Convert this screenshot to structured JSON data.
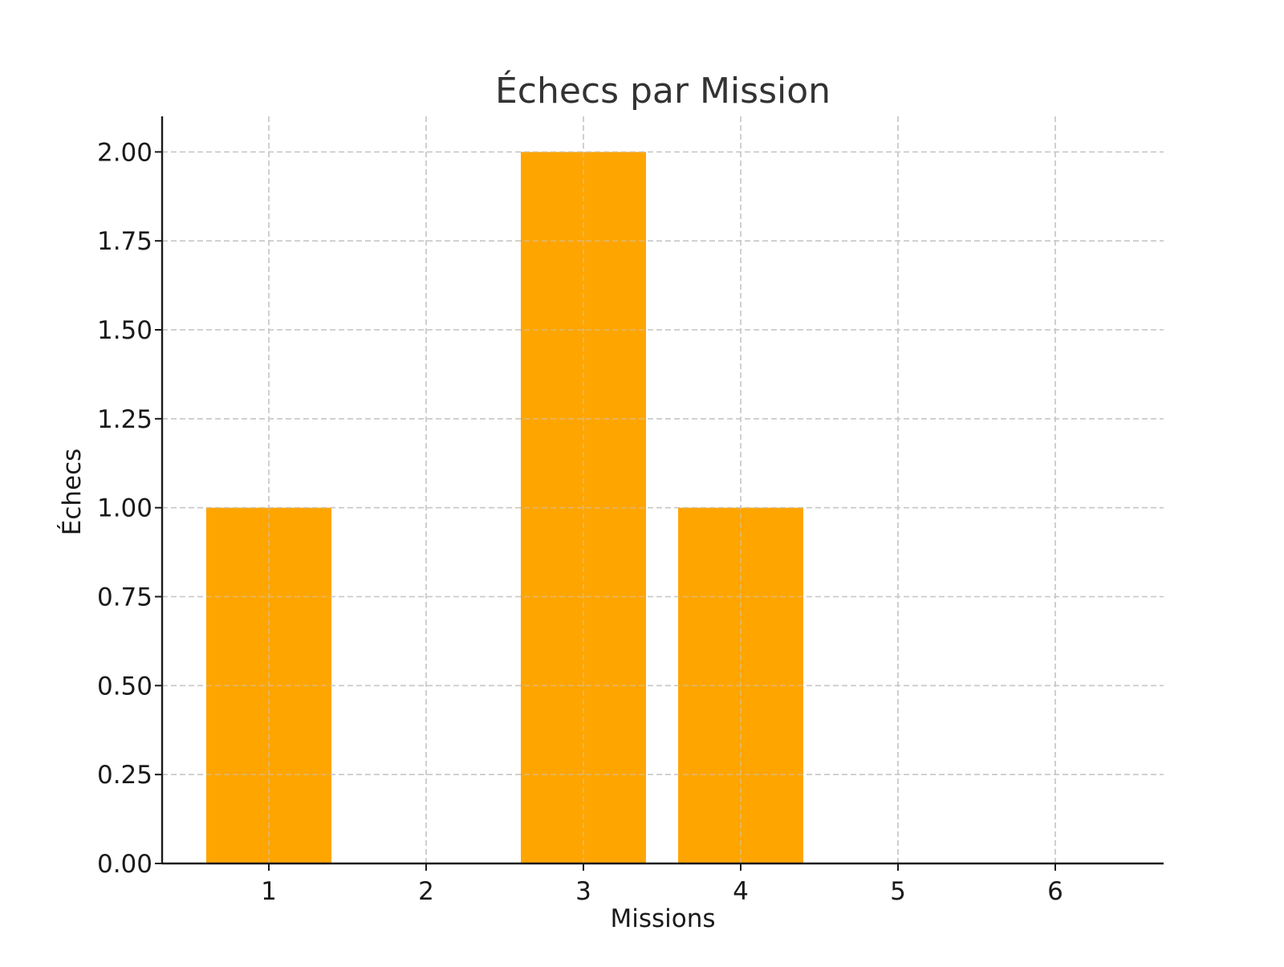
{
  "chart_data": {
    "type": "bar",
    "title": "Échecs par Mission",
    "xlabel": "Missions",
    "ylabel": "Échecs",
    "categories": [
      "1",
      "2",
      "3",
      "4",
      "5",
      "6"
    ],
    "values": [
      1,
      0,
      2,
      1,
      0,
      0
    ],
    "ylim": [
      0,
      2.1
    ],
    "yticks": [
      "0.00",
      "0.25",
      "0.50",
      "0.75",
      "1.00",
      "1.25",
      "1.50",
      "1.75",
      "2.00"
    ],
    "ytick_values": [
      0,
      0.25,
      0.5,
      0.75,
      1.0,
      1.25,
      1.5,
      1.75,
      2.0
    ],
    "grid": true,
    "bar_color": "#FFA500"
  }
}
